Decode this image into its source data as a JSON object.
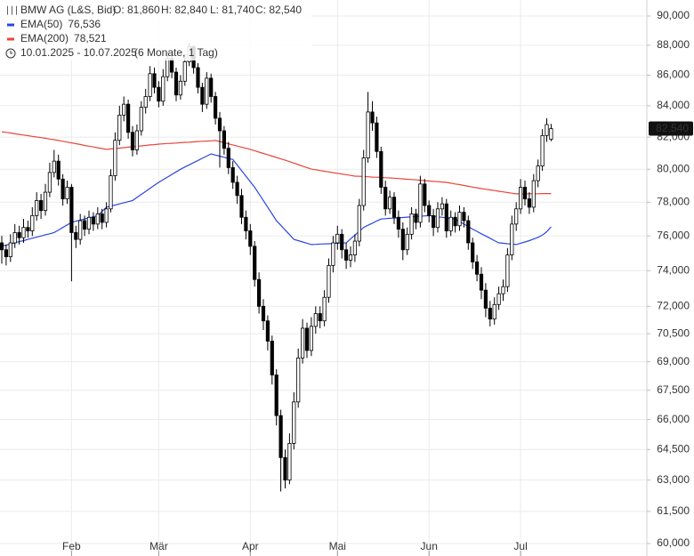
{
  "chart_data": {
    "type": "candlestick",
    "title": "BMW AG (L&S, Bid)",
    "quote": [
      "O: 81,860",
      "H: 82,840",
      "L: 81,740",
      "C: 82,540"
    ],
    "period": "10.01.2025 - 10.07.2025",
    "period_note": "(6 Monate, 1 Tag)",
    "price_tag": "82,540",
    "log_scale": true,
    "grid": true,
    "ylim": [
      60000,
      90000
    ],
    "yticks": [
      {
        "value": 60000,
        "label": "60,000"
      },
      {
        "value": 61500,
        "label": "61,500"
      },
      {
        "value": 63000,
        "label": "63,000"
      },
      {
        "value": 64500,
        "label": "64,500"
      },
      {
        "value": 66000,
        "label": "66,000"
      },
      {
        "value": 67500,
        "label": "67,500"
      },
      {
        "value": 69000,
        "label": "69,000"
      },
      {
        "value": 70500,
        "label": "70,500"
      },
      {
        "value": 72000,
        "label": "72,000"
      },
      {
        "value": 74000,
        "label": "74,000"
      },
      {
        "value": 76000,
        "label": "76,000"
      },
      {
        "value": 78000,
        "label": "78,000"
      },
      {
        "value": 80000,
        "label": "80,000"
      },
      {
        "value": 82000,
        "label": "82,000"
      },
      {
        "value": 84000,
        "label": "84,000"
      },
      {
        "value": 86000,
        "label": "86,000"
      },
      {
        "value": 88000,
        "label": "88,000"
      },
      {
        "value": 90000,
        "label": "90,000"
      }
    ],
    "categories": [
      null,
      null,
      null,
      null,
      null,
      null,
      null,
      null,
      null,
      null,
      null,
      null,
      null,
      null,
      null,
      null,
      "Feb",
      null,
      null,
      null,
      null,
      null,
      null,
      null,
      null,
      null,
      null,
      null,
      null,
      null,
      null,
      null,
      null,
      null,
      null,
      null,
      "Mär",
      null,
      null,
      null,
      null,
      null,
      null,
      null,
      null,
      null,
      null,
      null,
      null,
      null,
      null,
      null,
      null,
      null,
      null,
      null,
      null,
      "Apr",
      null,
      null,
      null,
      null,
      null,
      null,
      null,
      null,
      null,
      null,
      null,
      null,
      null,
      null,
      null,
      null,
      null,
      null,
      null,
      "Mai",
      null,
      null,
      null,
      null,
      null,
      null,
      null,
      null,
      null,
      null,
      null,
      null,
      null,
      null,
      null,
      null,
      null,
      null,
      null,
      null,
      "Jun",
      null,
      null,
      null,
      null,
      null,
      null,
      null,
      null,
      null,
      null,
      null,
      null,
      null,
      null,
      null,
      null,
      null,
      null,
      null,
      null,
      "Jul",
      null,
      null,
      null,
      null,
      null,
      null,
      null
    ],
    "candles": {
      "up_color": "#ffffff",
      "down_color": "#000000",
      "open": [
        75600,
        75200,
        74800,
        75600,
        76200,
        75900,
        76500,
        76300,
        77200,
        78100,
        77500,
        78600,
        79800,
        80500,
        79400,
        78200,
        78900,
        76200,
        75800,
        76900,
        76400,
        77100,
        76700,
        77300,
        76800,
        77600,
        79600,
        81800,
        83400,
        84100,
        82300,
        81200,
        82400,
        83900,
        84600,
        86100,
        85200,
        84300,
        85900,
        87100,
        86200,
        84700,
        85600,
        86900,
        87900,
        86500,
        85200,
        84100,
        85800,
        84600,
        83200,
        82400,
        81300,
        80100,
        79200,
        78400,
        77100,
        76300,
        75400,
        73500,
        72000,
        71200,
        70100,
        68300,
        66200,
        64100,
        63000,
        64800,
        66900,
        69200,
        70800,
        69600,
        70900,
        71600,
        71200,
        72500,
        74300,
        75600,
        76100,
        75200,
        74600,
        74900,
        75700,
        77800,
        80700,
        83600,
        82900,
        81100,
        78900,
        77600,
        78300,
        77100,
        76400,
        75200,
        76100,
        77300,
        76800,
        79100,
        77800,
        77200,
        76500,
        77600,
        77900,
        76300,
        77100,
        76600,
        77400,
        76900,
        75600,
        74500,
        73800,
        72900,
        71900,
        71300,
        72100,
        72700,
        73100,
        74900,
        76700,
        77600,
        78900,
        78200,
        77700,
        79300,
        80200,
        82100,
        81860
      ],
      "high": [
        76000,
        75500,
        76100,
        76700,
        76600,
        77000,
        76900,
        77700,
        78600,
        78500,
        79100,
        80400,
        81200,
        80900,
        79700,
        79300,
        79100,
        76600,
        77300,
        77200,
        77500,
        77400,
        77700,
        77600,
        78000,
        80000,
        82300,
        84000,
        84600,
        84400,
        82700,
        82800,
        84300,
        85100,
        86600,
        86500,
        85600,
        86400,
        87600,
        87400,
        86500,
        86000,
        87400,
        88150,
        88000,
        86800,
        85500,
        86200,
        86100,
        84900,
        83600,
        82700,
        81700,
        80500,
        79600,
        78800,
        77500,
        76700,
        75700,
        73900,
        72400,
        71500,
        70400,
        68600,
        66500,
        64500,
        65300,
        67400,
        69700,
        71300,
        71100,
        71400,
        72000,
        72000,
        72900,
        74700,
        76000,
        76600,
        76400,
        75600,
        75400,
        76100,
        78200,
        81200,
        84900,
        84300,
        83300,
        81400,
        79300,
        78700,
        78600,
        77500,
        76800,
        76500,
        77700,
        77600,
        79600,
        79400,
        78100,
        77600,
        78000,
        78300,
        78200,
        77500,
        77400,
        77800,
        77700,
        77200,
        75900,
        74900,
        74200,
        73300,
        72300,
        72500,
        73100,
        73500,
        75300,
        77200,
        78000,
        79400,
        79300,
        78600,
        79700,
        80600,
        82500,
        83200,
        82840
      ],
      "low": [
        74400,
        74300,
        74500,
        75300,
        75500,
        75600,
        75900,
        76000,
        76900,
        77000,
        77200,
        78300,
        79500,
        79000,
        77800,
        77900,
        73400,
        75300,
        75500,
        76000,
        76100,
        76300,
        76400,
        76400,
        76500,
        77400,
        79300,
        81500,
        83000,
        81900,
        80800,
        80900,
        82100,
        83500,
        84300,
        84800,
        83900,
        84000,
        85600,
        85800,
        84300,
        84400,
        85300,
        86600,
        86100,
        84800,
        83600,
        83800,
        84200,
        82800,
        80100,
        80900,
        79700,
        78800,
        77900,
        76700,
        75800,
        74900,
        73100,
        71600,
        70700,
        69600,
        67800,
        65700,
        62450,
        62600,
        62800,
        64500,
        66600,
        68900,
        69200,
        69300,
        70500,
        70800,
        70900,
        72200,
        73900,
        75200,
        74700,
        74100,
        74200,
        74500,
        75400,
        77500,
        80400,
        82400,
        80700,
        78500,
        77200,
        77300,
        76700,
        75900,
        74600,
        74900,
        75800,
        76400,
        76500,
        77400,
        76800,
        76000,
        76200,
        77200,
        75900,
        76000,
        76200,
        76300,
        76500,
        75200,
        74100,
        73400,
        72400,
        71400,
        70900,
        71000,
        71800,
        72300,
        72800,
        74600,
        76300,
        77300,
        77800,
        77300,
        77400,
        78900,
        79900,
        81700,
        81740
      ],
      "close": [
        75200,
        74800,
        75600,
        76200,
        75900,
        76500,
        76300,
        77200,
        78100,
        77500,
        78600,
        79800,
        80500,
        79400,
        78200,
        78900,
        76200,
        75800,
        76900,
        76400,
        77100,
        76700,
        77300,
        76800,
        77600,
        79600,
        81800,
        83400,
        84100,
        82300,
        81200,
        82400,
        83900,
        84600,
        86100,
        85200,
        84300,
        85900,
        87100,
        86200,
        84700,
        85600,
        86900,
        87900,
        86500,
        85200,
        84100,
        85800,
        84600,
        83200,
        82400,
        81300,
        80100,
        79200,
        78400,
        77100,
        76300,
        75400,
        73500,
        72000,
        71200,
        70100,
        68300,
        66200,
        64100,
        63000,
        64800,
        66900,
        69200,
        70800,
        69600,
        70900,
        71600,
        71200,
        72500,
        74300,
        75600,
        76100,
        75200,
        74600,
        74900,
        75700,
        77800,
        80700,
        83600,
        82900,
        81100,
        78900,
        77600,
        78300,
        77100,
        76400,
        75200,
        76100,
        77300,
        76800,
        79100,
        77800,
        77200,
        76500,
        77600,
        77900,
        76300,
        77100,
        76600,
        77400,
        76900,
        75600,
        74500,
        73800,
        72900,
        71900,
        71300,
        72100,
        72700,
        73100,
        74900,
        76700,
        77600,
        78900,
        78200,
        77700,
        79300,
        80200,
        82100,
        82800,
        82540
      ]
    },
    "series": [
      {
        "name": "EMA(50)",
        "value_label": "76,536",
        "color": "#2b46e0",
        "values": [
          75400,
          75470,
          75530,
          75600,
          75670,
          75730,
          75800,
          75870,
          75930,
          76000,
          76070,
          76130,
          76200,
          76350,
          76500,
          76650,
          76800,
          76870,
          76930,
          77000,
          77070,
          77130,
          77200,
          77450,
          77700,
          77770,
          77830,
          77900,
          77970,
          78030,
          78100,
          78280,
          78470,
          78650,
          78830,
          79020,
          79200,
          79360,
          79520,
          79680,
          79840,
          80000,
          80140,
          80270,
          80410,
          80540,
          80680,
          80810,
          80950,
          80880,
          80810,
          80740,
          80670,
          80600,
          80260,
          79920,
          79580,
          79240,
          78900,
          78500,
          78100,
          77700,
          77300,
          76900,
          76630,
          76350,
          76080,
          75800,
          75730,
          75650,
          75580,
          75500,
          75510,
          75530,
          75540,
          75550,
          75560,
          75580,
          75590,
          75600,
          75830,
          76050,
          76280,
          76500,
          76630,
          76750,
          76880,
          77000,
          77020,
          77040,
          77050,
          77070,
          77090,
          77110,
          77130,
          77150,
          77160,
          77180,
          77200,
          77170,
          77130,
          77100,
          77070,
          77030,
          77000,
          76850,
          76700,
          76550,
          76400,
          76270,
          76130,
          76000,
          75870,
          75730,
          75600,
          75580,
          75550,
          75530,
          75500,
          75580,
          75650,
          75730,
          75820,
          75920,
          76050,
          76250,
          76536
        ]
      },
      {
        "name": "EMA(200)",
        "value_label": "78,521",
        "color": "#e8463c",
        "values": [
          82340,
          82300,
          82260,
          82210,
          82170,
          82130,
          82090,
          82050,
          82010,
          81970,
          81930,
          81880,
          81840,
          81790,
          81740,
          81690,
          81640,
          81590,
          81540,
          81480,
          81430,
          81380,
          81330,
          81280,
          81230,
          81260,
          81290,
          81310,
          81340,
          81370,
          81400,
          81420,
          81450,
          81480,
          81510,
          81530,
          81560,
          81580,
          81600,
          81610,
          81630,
          81650,
          81670,
          81680,
          81700,
          81720,
          81740,
          81750,
          81770,
          81790,
          81720,
          81650,
          81580,
          81510,
          81440,
          81370,
          81300,
          81230,
          81150,
          81060,
          80980,
          80900,
          80810,
          80730,
          80640,
          80560,
          80470,
          80380,
          80290,
          80190,
          80100,
          80010,
          79970,
          79920,
          79880,
          79840,
          79790,
          79750,
          79710,
          79670,
          79620,
          79580,
          79570,
          79550,
          79540,
          79520,
          79510,
          79500,
          79480,
          79470,
          79450,
          79430,
          79410,
          79390,
          79370,
          79350,
          79330,
          79300,
          79280,
          79260,
          79240,
          79220,
          79200,
          79150,
          79100,
          79060,
          79010,
          78960,
          78910,
          78870,
          78820,
          78780,
          78740,
          78700,
          78660,
          78620,
          78580,
          78540,
          78500,
          78500,
          78500,
          78510,
          78510,
          78510,
          78520,
          78520,
          78521
        ]
      }
    ]
  }
}
